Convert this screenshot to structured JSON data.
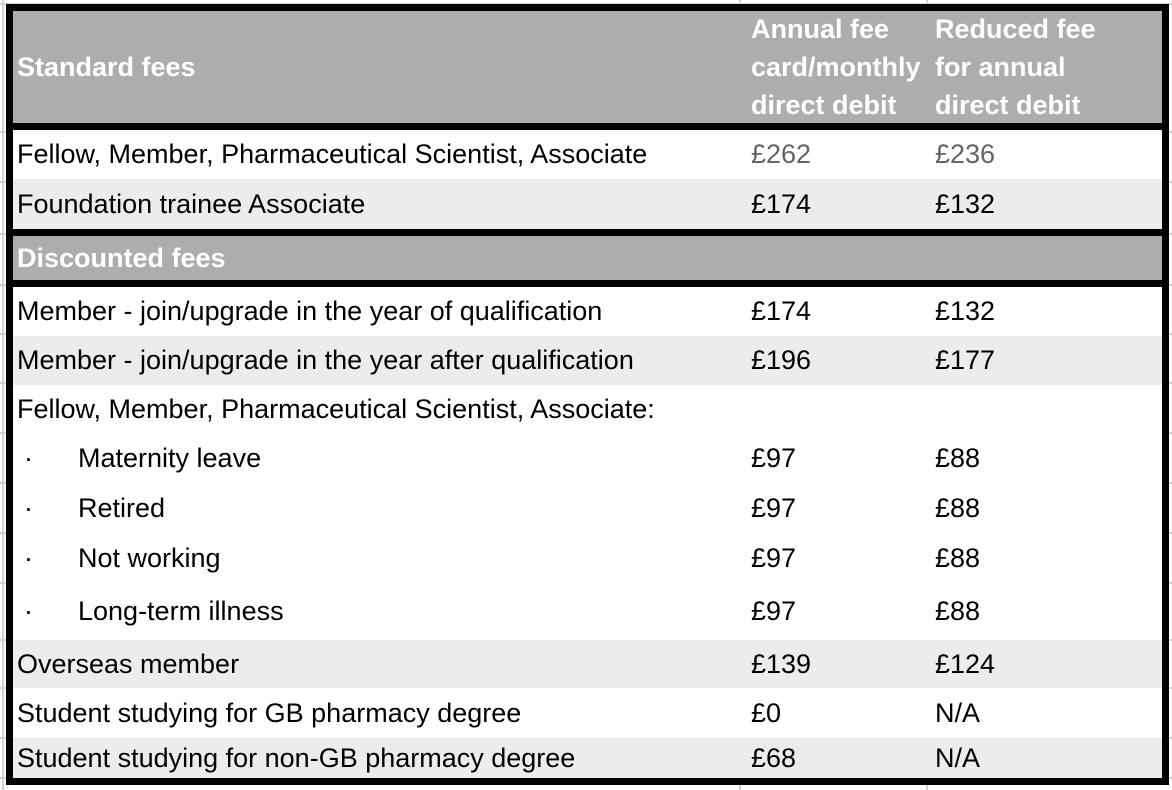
{
  "colors": {
    "header_bg": "#adadad",
    "header_text": "#ffffff",
    "stripe_bg": "#ececec",
    "row_bg": "#ffffff",
    "border": "#000000",
    "gridline": "#d2d2d2",
    "text": "#000000",
    "muted_text": "#646464"
  },
  "table": {
    "header": {
      "col1": "Standard fees",
      "col2": "Annual fee card/monthly direct debit",
      "col2_lines": [
        "Annual fee",
        "card/monthly",
        "direct debit"
      ],
      "col3": "Reduced fee for annual direct debit",
      "col3_lines": [
        "Reduced fee",
        "for annual",
        "direct debit"
      ]
    },
    "rows": [
      {
        "type": "data",
        "label": "Fellow, Member, Pharmaceutical Scientist, Associate",
        "fee_annual": "£262",
        "fee_reduced": "£236",
        "striped": false,
        "muted_fees": true
      },
      {
        "type": "data",
        "label": "Foundation trainee Associate",
        "fee_annual": "£174",
        "fee_reduced": "£132",
        "striped": true
      },
      {
        "type": "section",
        "label": "Discounted fees"
      },
      {
        "type": "data",
        "label": "Member - join/upgrade in the year of qualification",
        "fee_annual": "£174",
        "fee_reduced": "£132",
        "striped": false
      },
      {
        "type": "data",
        "label": "Member - join/upgrade in the year after qualification",
        "fee_annual": "£196",
        "fee_reduced": "£177",
        "striped": true
      },
      {
        "type": "data",
        "label": "Fellow, Member, Pharmaceutical Scientist, Associate:",
        "fee_annual": "",
        "fee_reduced": "",
        "striped": false
      },
      {
        "type": "data",
        "bullet": "·",
        "label": "Maternity leave",
        "fee_annual": "£97",
        "fee_reduced": "£88",
        "striped": false
      },
      {
        "type": "data",
        "bullet": "·",
        "label": "Retired",
        "fee_annual": "£97",
        "fee_reduced": "£88",
        "striped": false
      },
      {
        "type": "data",
        "bullet": "·",
        "label": "Not working",
        "fee_annual": "£97",
        "fee_reduced": "£88",
        "striped": false
      },
      {
        "type": "data",
        "bullet": "·",
        "label": "Long-term illness",
        "fee_annual": "£97",
        "fee_reduced": "£88",
        "striped": false
      },
      {
        "type": "data",
        "label": "Overseas member",
        "fee_annual": "£139",
        "fee_reduced": "£124",
        "striped": true
      },
      {
        "type": "data",
        "label": "Student studying for GB pharmacy degree",
        "fee_annual": "£0",
        "fee_reduced": "N/A",
        "striped": false
      },
      {
        "type": "data",
        "label": "Student studying for non-GB pharmacy degree",
        "fee_annual": "£68",
        "fee_reduced": "N/A",
        "striped": true
      }
    ]
  }
}
